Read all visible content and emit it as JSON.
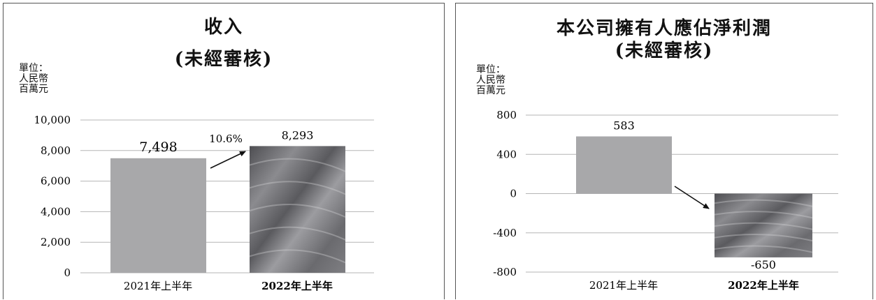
{
  "colors": {
    "bar_2021": "#a8a8aa",
    "bar_2022_base": "#6e6e72",
    "gridline": "#b5b5b5",
    "arrow": "#111111"
  },
  "chart_data": [
    {
      "type": "bar",
      "title": "收入",
      "subtitle": "(未經審核)",
      "unit_label": [
        "單位：",
        "人民幣",
        "百萬元"
      ],
      "categories": [
        "2021年上半年",
        "2022年上半年"
      ],
      "category_bold": [
        false,
        true
      ],
      "values": [
        7498,
        8293
      ],
      "value_labels": [
        "7,498",
        "8,293"
      ],
      "growth_label": "10.6%",
      "ylim": [
        0,
        10000
      ],
      "yticks": [
        0,
        2000,
        4000,
        6000,
        8000,
        10000
      ],
      "ytick_labels": [
        "0",
        "2,000",
        "4,000",
        "6,000",
        "8,000",
        "10,000"
      ],
      "grid": true,
      "legend": "none"
    },
    {
      "type": "bar",
      "title": "本公司擁有人應佔淨利潤",
      "subtitle": "(未經審核)",
      "unit_label": [
        "單位：",
        "人民幣",
        "百萬元"
      ],
      "categories": [
        "2021年上半年",
        "2022年上半年"
      ],
      "category_bold": [
        false,
        true
      ],
      "values": [
        583,
        -650
      ],
      "value_labels": [
        "583",
        "-650"
      ],
      "ylim": [
        -800,
        800
      ],
      "yticks": [
        -800,
        -400,
        0,
        400,
        800
      ],
      "ytick_labels": [
        "-800",
        "-400",
        "0",
        "400",
        "800"
      ],
      "grid": true,
      "legend": "none"
    }
  ]
}
